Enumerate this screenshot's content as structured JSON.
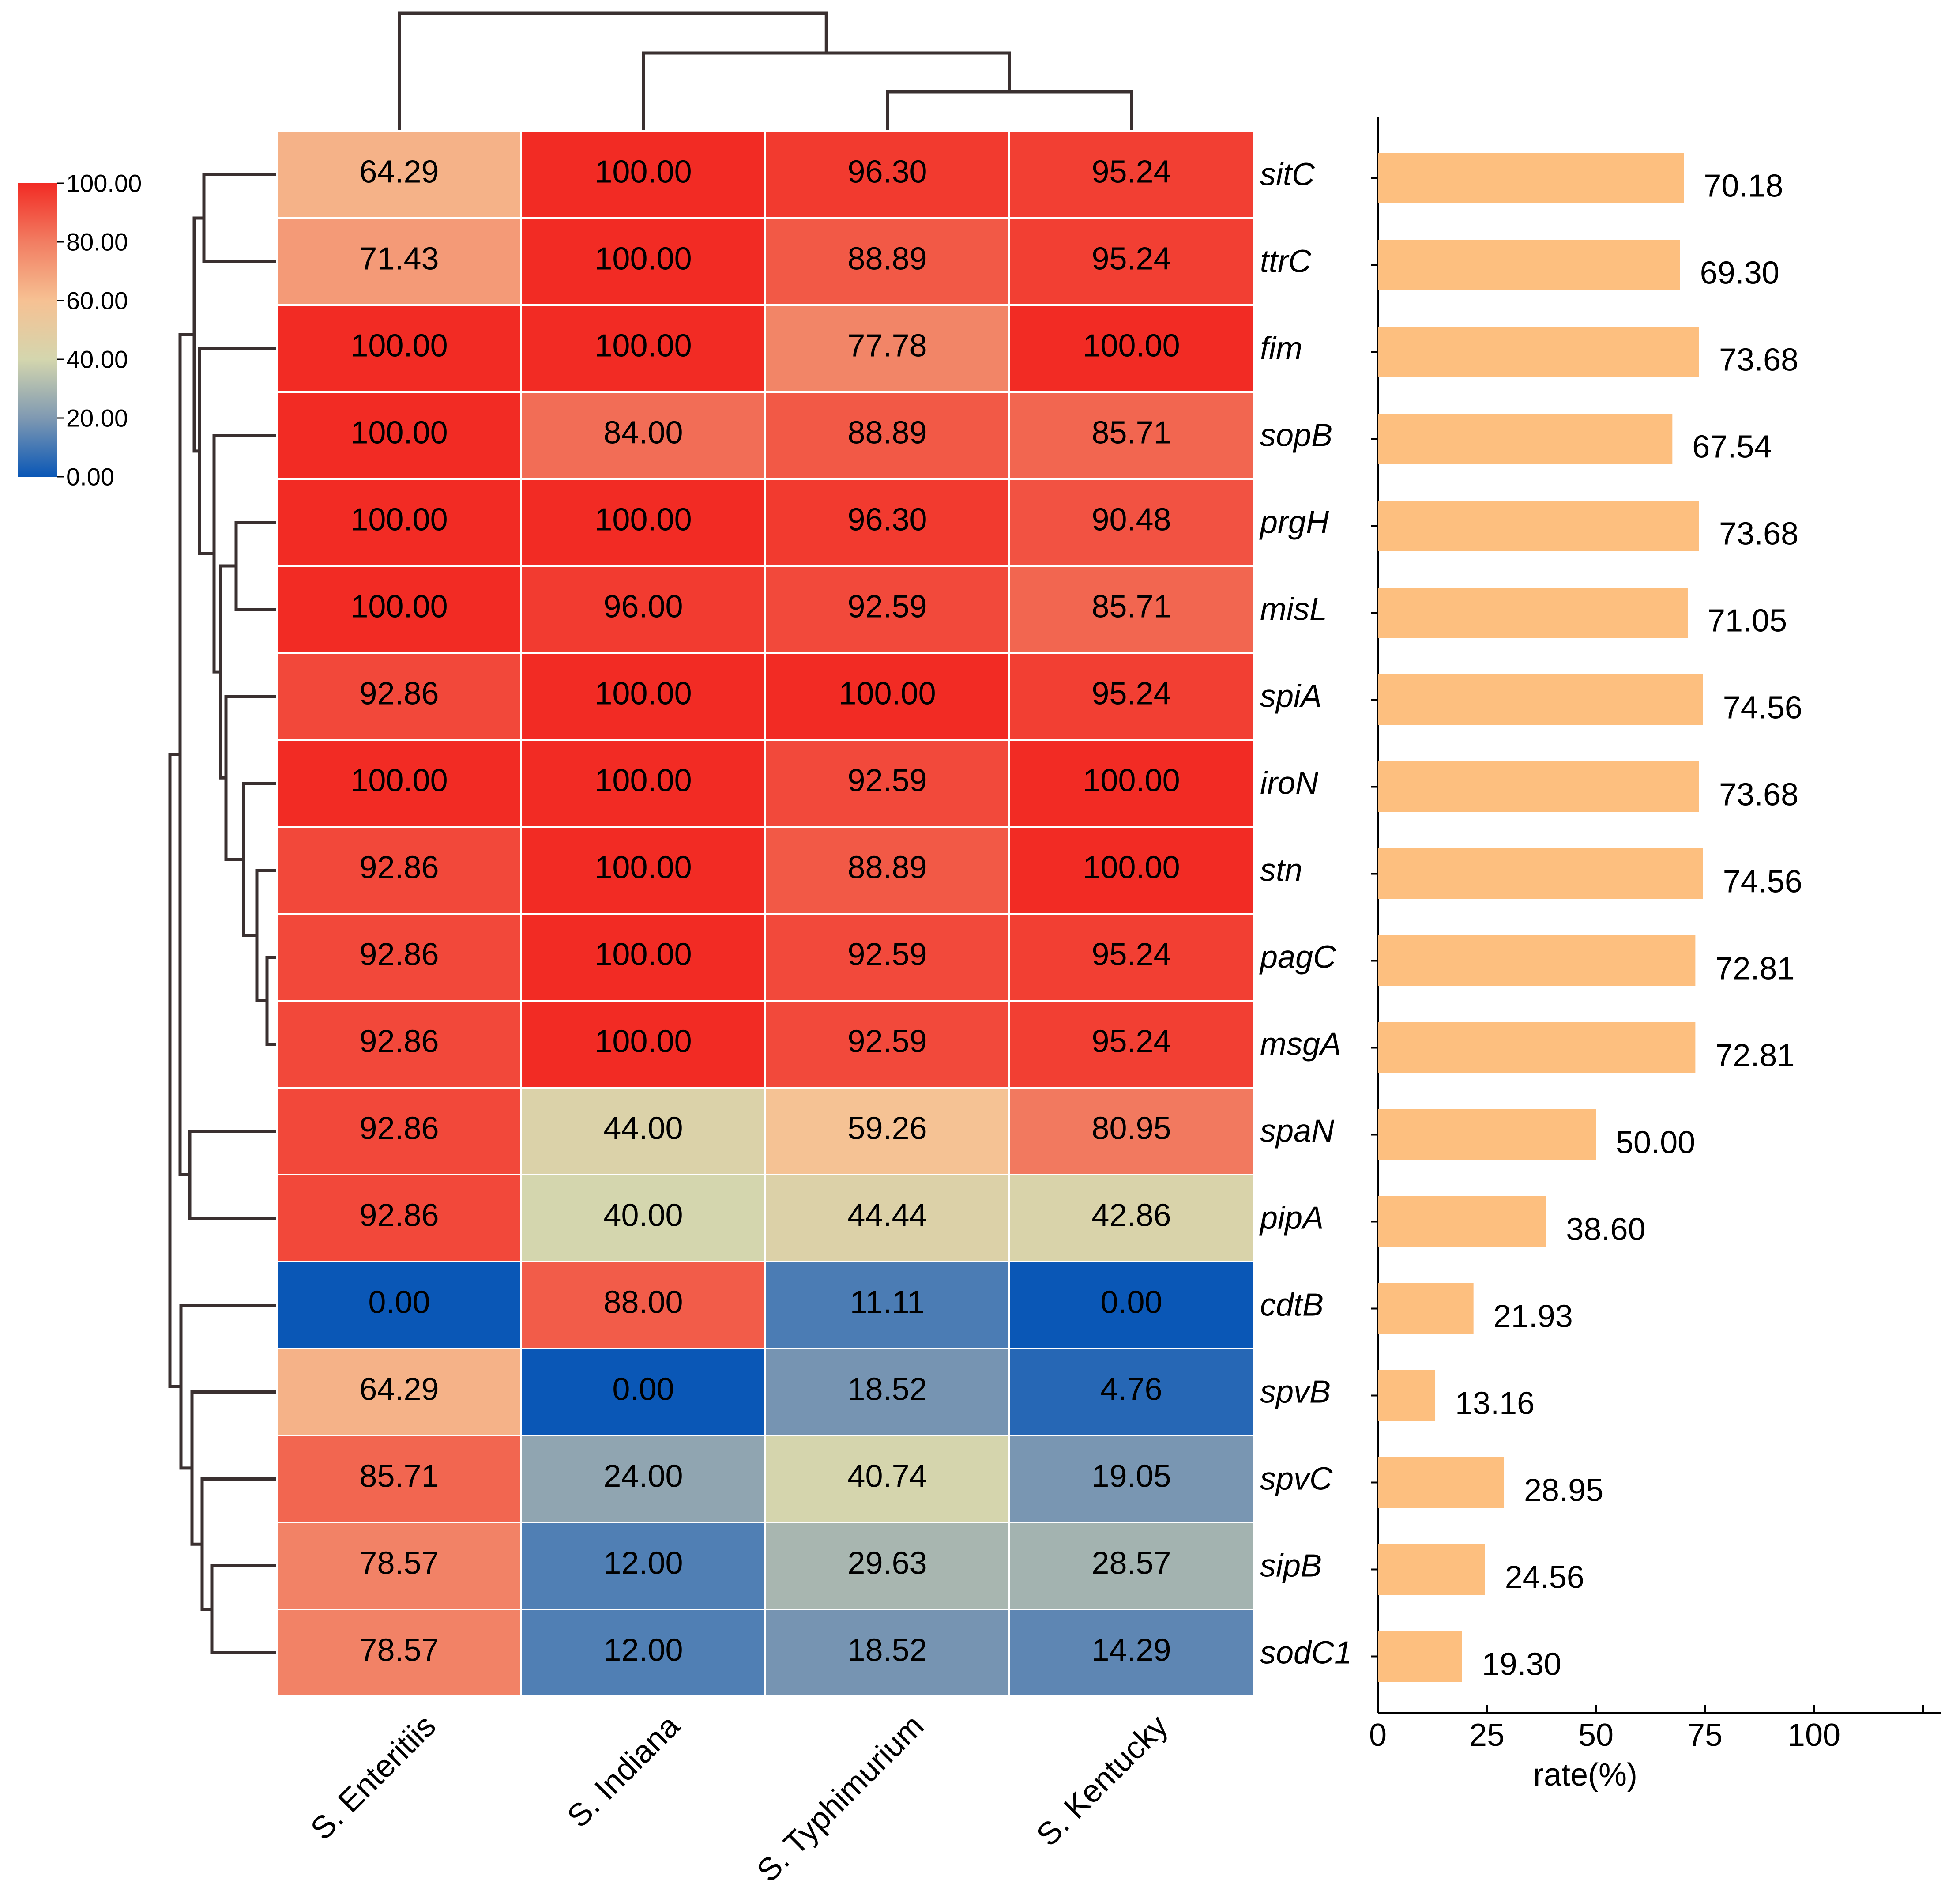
{
  "chart_data": [
    {
      "type": "heatmap",
      "columns": [
        "S. Enteritiis",
        "S. Indiana",
        "S. Typhimurium",
        "S. Kentucky"
      ],
      "rows": [
        "sitC",
        "ttrC",
        "fim",
        "sopB",
        "prgH",
        "misL",
        "spiA",
        "iroN",
        "stn",
        "pagC",
        "msgA",
        "spaN",
        "pipA",
        "cdtB",
        "spvB",
        "spvC",
        "sipB",
        "sodC1"
      ],
      "values": [
        [
          64.29,
          100.0,
          96.3,
          95.24
        ],
        [
          71.43,
          100.0,
          88.89,
          95.24
        ],
        [
          100.0,
          100.0,
          77.78,
          100.0
        ],
        [
          100.0,
          84.0,
          88.89,
          85.71
        ],
        [
          100.0,
          100.0,
          96.3,
          90.48
        ],
        [
          100.0,
          96.0,
          92.59,
          85.71
        ],
        [
          92.86,
          100.0,
          100.0,
          95.24
        ],
        [
          100.0,
          100.0,
          92.59,
          100.0
        ],
        [
          92.86,
          100.0,
          88.89,
          100.0
        ],
        [
          92.86,
          100.0,
          92.59,
          95.24
        ],
        [
          92.86,
          100.0,
          92.59,
          95.24
        ],
        [
          92.86,
          44.0,
          59.26,
          80.95
        ],
        [
          92.86,
          40.0,
          44.44,
          42.86
        ],
        [
          0.0,
          88.0,
          11.11,
          0.0
        ],
        [
          64.29,
          0.0,
          18.52,
          4.76
        ],
        [
          85.71,
          24.0,
          40.74,
          19.05
        ],
        [
          78.57,
          12.0,
          29.63,
          28.57
        ],
        [
          78.57,
          12.0,
          18.52,
          14.29
        ]
      ],
      "colorscale": {
        "range": [
          0,
          100
        ],
        "ticks": [
          "100.00",
          "80.00",
          "60.00",
          "40.00",
          "20.00",
          "0.00"
        ],
        "low_color": "#0a57b6",
        "mid_color": "#e6e2b8",
        "high_color": "#f22b24"
      },
      "dendrogram": "hierarchical clustering on rows and columns"
    },
    {
      "type": "bar",
      "orientation": "horizontal",
      "categories": [
        "sitC",
        "ttrC",
        "fim",
        "sopB",
        "prgH",
        "misL",
        "spiA",
        "iroN",
        "stn",
        "pagC",
        "msgA",
        "spaN",
        "pipA",
        "cdtB",
        "spvB",
        "spvC",
        "sipB",
        "sodC1"
      ],
      "values": [
        70.18,
        69.3,
        73.68,
        67.54,
        73.68,
        71.05,
        74.56,
        73.68,
        74.56,
        72.81,
        72.81,
        50.0,
        38.6,
        21.93,
        13.16,
        28.95,
        24.56,
        19.3
      ],
      "value_labels": [
        "70.18",
        "69.30",
        "73.68",
        "67.54",
        "73.68",
        "71.05",
        "74.56",
        "73.68",
        "74.56",
        "72.81",
        "72.81",
        "50.00",
        "38.60",
        "21.93",
        "13.16",
        "28.95",
        "24.56",
        "19.30"
      ],
      "xlabel": "rate(%)",
      "xlim": [
        0,
        125
      ],
      "xticks": [
        "0",
        "25",
        "50",
        "75",
        "100"
      ],
      "bar_color": "#fdbf7f"
    }
  ]
}
